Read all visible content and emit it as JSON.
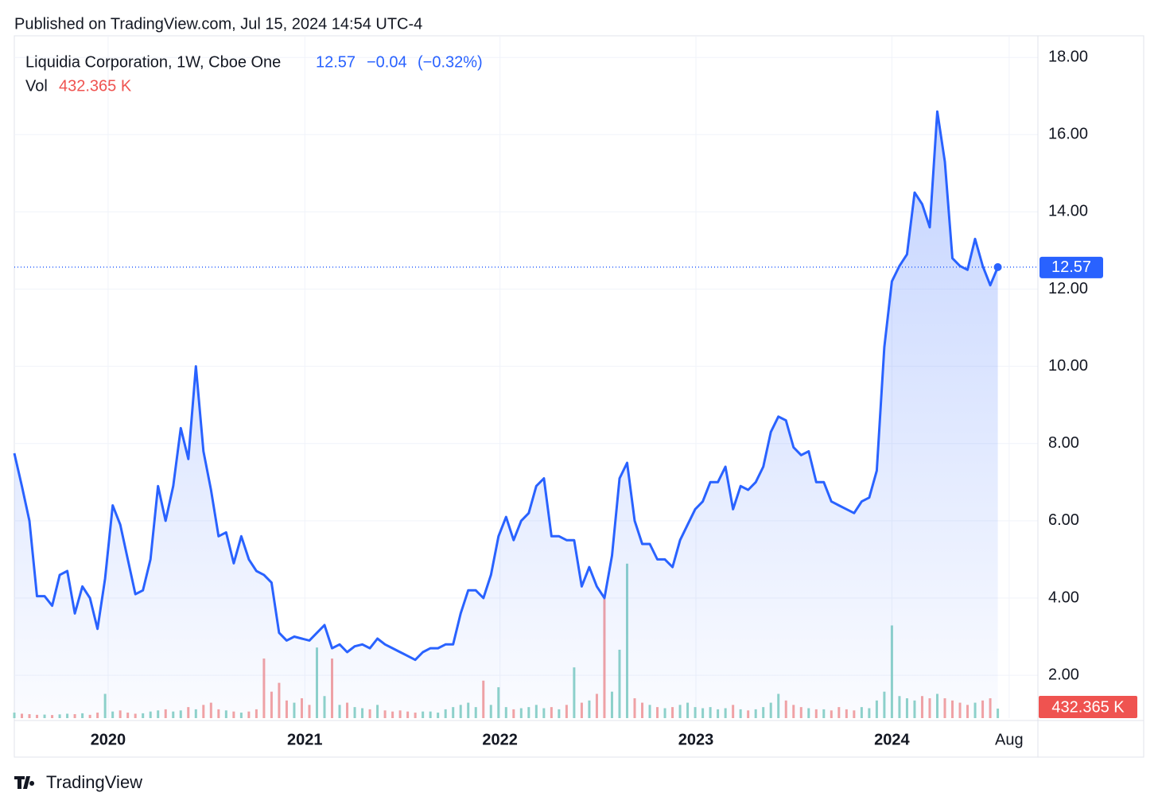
{
  "header": {
    "published": "Published on TradingView.com, Jul 15, 2024 14:54 UTC-4",
    "logo": "TradingView"
  },
  "chart_data": {
    "type": "line",
    "title": "Liquidia Corporation, 1W, Cboe One",
    "last_price": "12.57",
    "change": "−0.04",
    "change_pct": "(−0.32%)",
    "volume_label": "Vol",
    "categories": [
      null,
      null,
      null,
      null,
      null,
      null,
      null,
      null,
      null,
      null,
      null,
      null,
      null,
      null,
      null,
      null,
      null,
      null,
      null,
      null,
      null,
      null,
      null,
      null,
      null,
      null,
      null,
      null,
      null,
      null,
      null,
      null,
      null,
      null,
      null,
      null,
      null,
      null,
      null,
      null,
      null,
      null,
      null,
      null,
      null,
      null,
      null,
      null,
      null,
      null,
      null,
      null,
      null,
      null,
      null,
      null,
      null,
      null,
      null,
      null,
      null,
      null,
      null,
      null,
      null,
      null,
      null,
      null,
      null,
      null,
      null,
      null,
      null,
      null,
      null,
      null,
      null,
      null,
      null,
      null,
      null,
      null,
      null,
      null,
      null,
      null,
      null,
      null,
      null,
      null,
      null,
      null,
      null,
      null,
      null,
      null,
      null,
      null,
      null,
      null,
      null,
      null,
      null,
      null,
      null,
      null,
      null,
      null,
      null,
      null,
      null,
      null,
      null,
      null,
      null,
      null,
      null,
      null,
      null,
      null,
      null,
      null,
      null,
      null,
      null,
      null,
      null,
      null,
      null,
      null,
      null
    ],
    "series": [
      {
        "name": "Liquidia Corporation",
        "color": "#2962ff",
        "values": [
          7.75,
          6.9,
          6.0,
          4.05,
          4.05,
          3.8,
          4.6,
          4.7,
          3.6,
          4.3,
          4.0,
          3.2,
          4.5,
          6.4,
          5.9,
          5.0,
          4.1,
          4.2,
          5.0,
          6.9,
          6.0,
          6.9,
          8.4,
          7.6,
          10.0,
          7.8,
          6.8,
          5.6,
          5.7,
          4.9,
          5.6,
          5.0,
          4.7,
          4.6,
          4.4,
          3.1,
          2.9,
          3.0,
          2.95,
          2.9,
          3.1,
          3.3,
          2.7,
          2.8,
          2.6,
          2.75,
          2.8,
          2.7,
          2.95,
          2.8,
          2.7,
          2.6,
          2.5,
          2.4,
          2.6,
          2.7,
          2.7,
          2.8,
          2.8,
          3.6,
          4.2,
          4.2,
          4.0,
          4.6,
          5.6,
          6.1,
          5.5,
          6.0,
          6.2,
          6.9,
          7.1,
          5.6,
          5.6,
          5.5,
          5.5,
          4.3,
          4.8,
          4.3,
          4.0,
          5.1,
          7.1,
          7.5,
          6.0,
          5.4,
          5.4,
          5.0,
          5.0,
          4.8,
          5.5,
          5.9,
          6.3,
          6.5,
          7.0,
          7.0,
          7.4,
          6.3,
          6.9,
          6.8,
          7.0,
          7.4,
          8.3,
          8.7,
          8.6,
          7.9,
          7.7,
          7.8,
          7.0,
          7.0,
          6.5,
          6.4,
          6.3,
          6.2,
          6.5,
          6.6,
          7.3,
          10.5,
          12.2,
          12.6,
          12.9,
          14.5,
          14.2,
          13.6,
          16.6,
          15.3,
          12.8,
          12.6,
          12.5,
          13.3,
          12.6,
          12.1,
          12.57
        ]
      },
      {
        "name": "Vol",
        "axis": "y2",
        "up_color": "#8fd3c9",
        "down_color": "#f4a3a3",
        "values": [
          250,
          200,
          180,
          150,
          160,
          140,
          170,
          200,
          180,
          220,
          150,
          250,
          1100,
          300,
          350,
          250,
          200,
          220,
          300,
          350,
          400,
          300,
          350,
          500,
          400,
          600,
          700,
          400,
          350,
          300,
          250,
          300,
          400,
          2700,
          1200,
          1600,
          800,
          700,
          900,
          600,
          3200,
          1000,
          2700,
          600,
          700,
          500,
          450,
          400,
          600,
          350,
          300,
          350,
          300,
          250,
          300,
          300,
          250,
          400,
          500,
          600,
          700,
          500,
          1700,
          600,
          1400,
          500,
          400,
          450,
          500,
          600,
          450,
          500,
          400,
          600,
          2300,
          700,
          800,
          1100,
          5400,
          1200,
          3100,
          7000,
          900,
          700,
          600,
          500,
          450,
          500,
          600,
          700,
          500,
          450,
          500,
          400,
          450,
          600,
          400,
          350,
          400,
          500,
          700,
          1100,
          800,
          600,
          500,
          450,
          400,
          400,
          350,
          500,
          400,
          350,
          500,
          450,
          800,
          1200,
          4200,
          1000,
          900,
          800,
          1000,
          900,
          1100,
          900,
          800,
          700,
          600,
          700,
          800,
          900,
          432.365
        ],
        "value_labels": {
          "130": "432.365 K"
        }
      }
    ],
    "xlim": [
      0,
      135.3
    ],
    "xticks": [
      {
        "value": 12.4,
        "label": "2020"
      },
      {
        "value": 38.4,
        "label": "2021"
      },
      {
        "value": 64.2,
        "label": "2022"
      },
      {
        "value": 90.1,
        "label": "2023"
      },
      {
        "value": 116.0,
        "label": "2024"
      },
      {
        "value": 131.5,
        "label": "Aug"
      }
    ],
    "ylim": [
      0.89,
      18.56
    ],
    "yticks": [
      {
        "value": 2,
        "label": "2.00"
      },
      {
        "value": 4,
        "label": "4.00"
      },
      {
        "value": 6,
        "label": "6.00"
      },
      {
        "value": 8,
        "label": "8.00"
      },
      {
        "value": 10,
        "label": "10.00"
      },
      {
        "value": 12,
        "label": "12.00"
      },
      {
        "value": 14,
        "label": "14.00"
      },
      {
        "value": 16,
        "label": "16.00"
      },
      {
        "value": 18,
        "label": "18.00"
      }
    ],
    "y2lim": [
      0,
      8000
    ],
    "grid": true
  }
}
